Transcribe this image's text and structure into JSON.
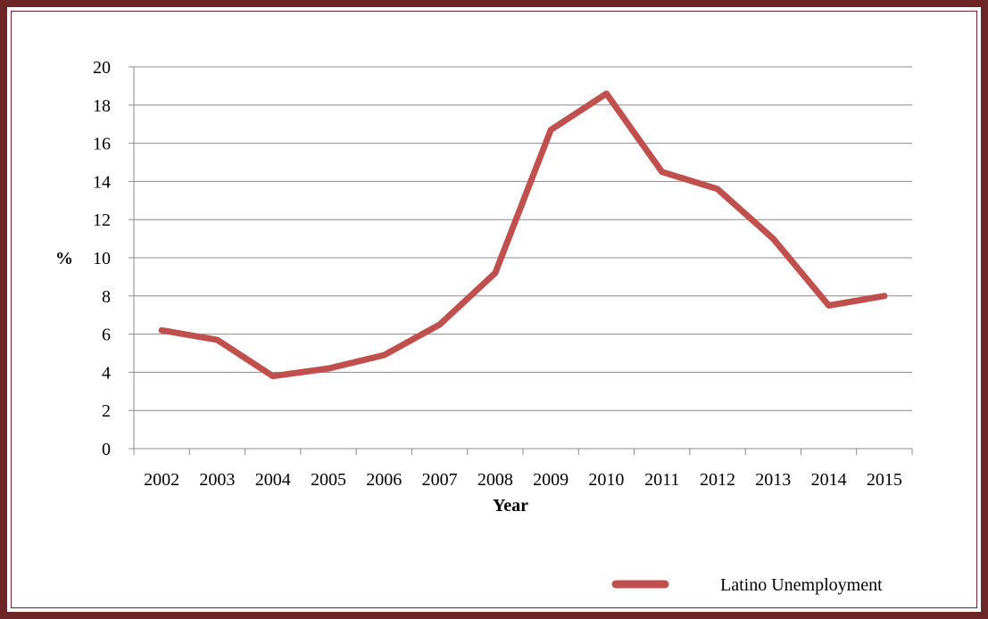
{
  "chart_data": {
    "type": "line",
    "title": "",
    "xlabel": "Year",
    "ylabel": "%",
    "ylim": [
      0,
      20
    ],
    "yticks": [
      0,
      2,
      4,
      6,
      8,
      10,
      12,
      14,
      16,
      18,
      20
    ],
    "categories": [
      "2002",
      "2003",
      "2004",
      "2005",
      "2006",
      "2007",
      "2008",
      "2009",
      "2010",
      "2011",
      "2012",
      "2013",
      "2014",
      "2015"
    ],
    "series": [
      {
        "name": "Latino Unemployment",
        "color": "#c0504d",
        "values": [
          6.2,
          5.7,
          3.8,
          4.2,
          4.9,
          6.5,
          9.2,
          16.7,
          18.6,
          14.5,
          13.6,
          11.0,
          7.5,
          8.0
        ]
      }
    ],
    "grid": "horizontal",
    "legend": "bottom-right"
  }
}
